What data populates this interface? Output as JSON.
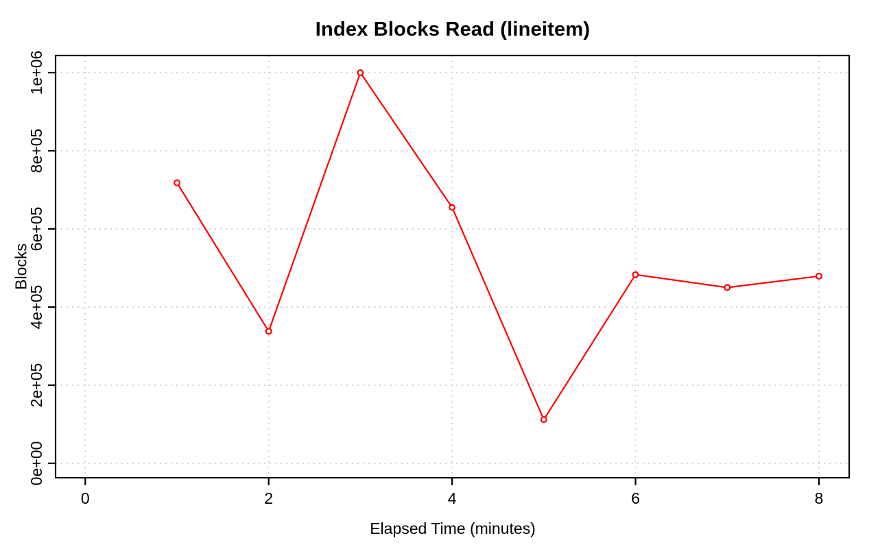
{
  "chart_data": {
    "type": "line",
    "title": "Index Blocks Read (lineitem)",
    "xlabel": "Elapsed Time (minutes)",
    "ylabel": "Blocks",
    "x": [
      1,
      2,
      3,
      4,
      5,
      6,
      7,
      8
    ],
    "values": [
      718000,
      338000,
      1000000,
      655000,
      112000,
      483000,
      450000,
      479000
    ],
    "series_name": "Index blocks read",
    "x_ticks": [
      {
        "value": 0,
        "label": "0"
      },
      {
        "value": 2,
        "label": "2"
      },
      {
        "value": 4,
        "label": "4"
      },
      {
        "value": 6,
        "label": "6"
      },
      {
        "value": 8,
        "label": "8"
      }
    ],
    "y_ticks": [
      {
        "value": 0,
        "label": "0e+00"
      },
      {
        "value": 200000,
        "label": "2e+05"
      },
      {
        "value": 400000,
        "label": "4e+05"
      },
      {
        "value": 600000,
        "label": "6e+05"
      },
      {
        "value": 800000,
        "label": "8e+05"
      },
      {
        "value": 1000000,
        "label": "1e+06"
      }
    ],
    "xlim": [
      -0.32,
      8.33
    ],
    "ylim": [
      -37000,
      1044000
    ],
    "grid": true,
    "grid_style": "dotted",
    "marker": "open-circle",
    "colors": {
      "line": "#ff0000",
      "grid": "#d3d3d3",
      "axis": "#000000",
      "background": "#ffffff"
    }
  }
}
